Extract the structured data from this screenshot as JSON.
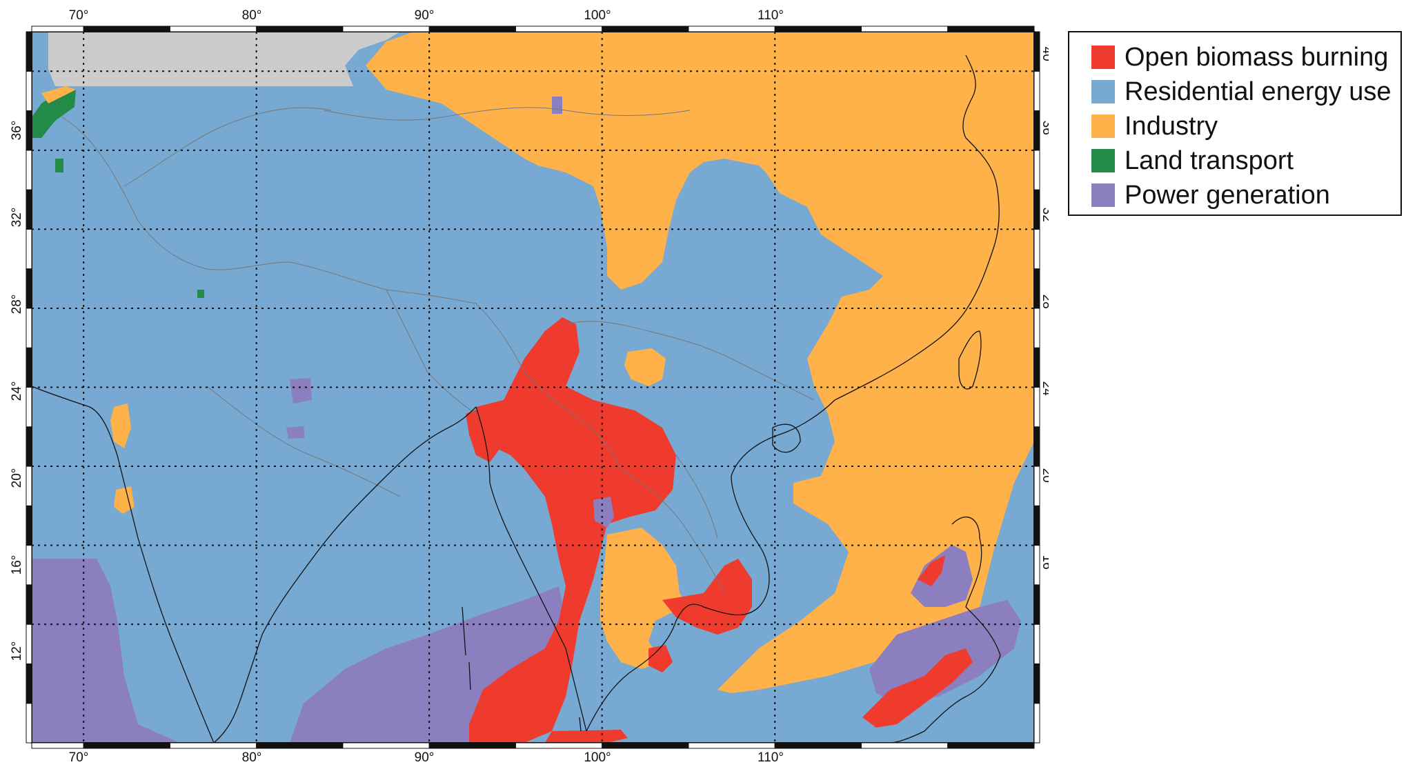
{
  "map": {
    "lon_range": [
      67,
      125
    ],
    "lat_range": [
      6,
      42
    ],
    "lon_ticks": [
      "70°",
      "80°",
      "90°",
      "100°",
      "110°"
    ],
    "lat_ticks": [
      "12°",
      "16°",
      "20°",
      "24°",
      "28°",
      "32°",
      "36°",
      "40°"
    ],
    "grid": "on",
    "projection": "equirectangular"
  },
  "legend": {
    "placement": "top-right, outside map",
    "items": [
      {
        "label": "Open biomass burning",
        "color": "#ee3b2e"
      },
      {
        "label": "Residential energy use",
        "color": "#77a9d3"
      },
      {
        "label": "Industry",
        "color": "#ffb24a"
      },
      {
        "label": "Land transport",
        "color": "#228b47"
      },
      {
        "label": "Power generation",
        "color": "#8c7fc0"
      }
    ]
  },
  "colors": {
    "no_data": "#cccccc",
    "coastline": "#111111",
    "borders": "#777777",
    "grid": "#111111"
  }
}
